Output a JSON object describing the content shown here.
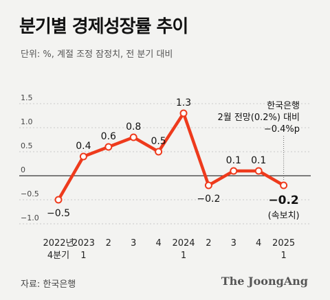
{
  "title": "분기별 경제성장률 추이",
  "subtitle": "단위: %, 계절 조정 잠정치, 전 분기 대비",
  "source": "자료: 한국은행",
  "brand": "The JoongAng",
  "chart_data": {
    "type": "line",
    "series_color": "#ee3a1c",
    "categories": [
      [
        "2022년",
        "4분기"
      ],
      [
        "2023",
        "1"
      ],
      [
        "2"
      ],
      [
        "3"
      ],
      [
        "4"
      ],
      [
        "2024",
        "1"
      ],
      [
        "2"
      ],
      [
        "3"
      ],
      [
        "4"
      ],
      [
        "2025",
        "1"
      ]
    ],
    "values": [
      -0.5,
      0.4,
      0.6,
      0.8,
      0.5,
      1.3,
      -0.2,
      0.1,
      0.1,
      -0.2
    ],
    "point_labels": [
      "−0.5",
      "0.4",
      "0.6",
      "0.8",
      "0.5",
      "1.3",
      "−0.2",
      "0.1",
      "0.1",
      "−0.2"
    ],
    "yticks": [
      {
        "value": 1.5,
        "label": "1.5"
      },
      {
        "value": 1.0,
        "label": "1.0"
      },
      {
        "value": 0.5,
        "label": "0.5"
      },
      {
        "value": 0,
        "label": "0"
      },
      {
        "value": -0.5,
        "label": "−0.5"
      },
      {
        "value": -1.0,
        "label": "−1.0"
      }
    ],
    "ylim": [
      -1.0,
      1.5
    ],
    "last_point_note": "(속보치)",
    "forecast": {
      "value": -0.4,
      "lines": [
        "한국은행",
        "2월 전망(0.2%) 대비",
        "−0.4%p"
      ]
    }
  }
}
